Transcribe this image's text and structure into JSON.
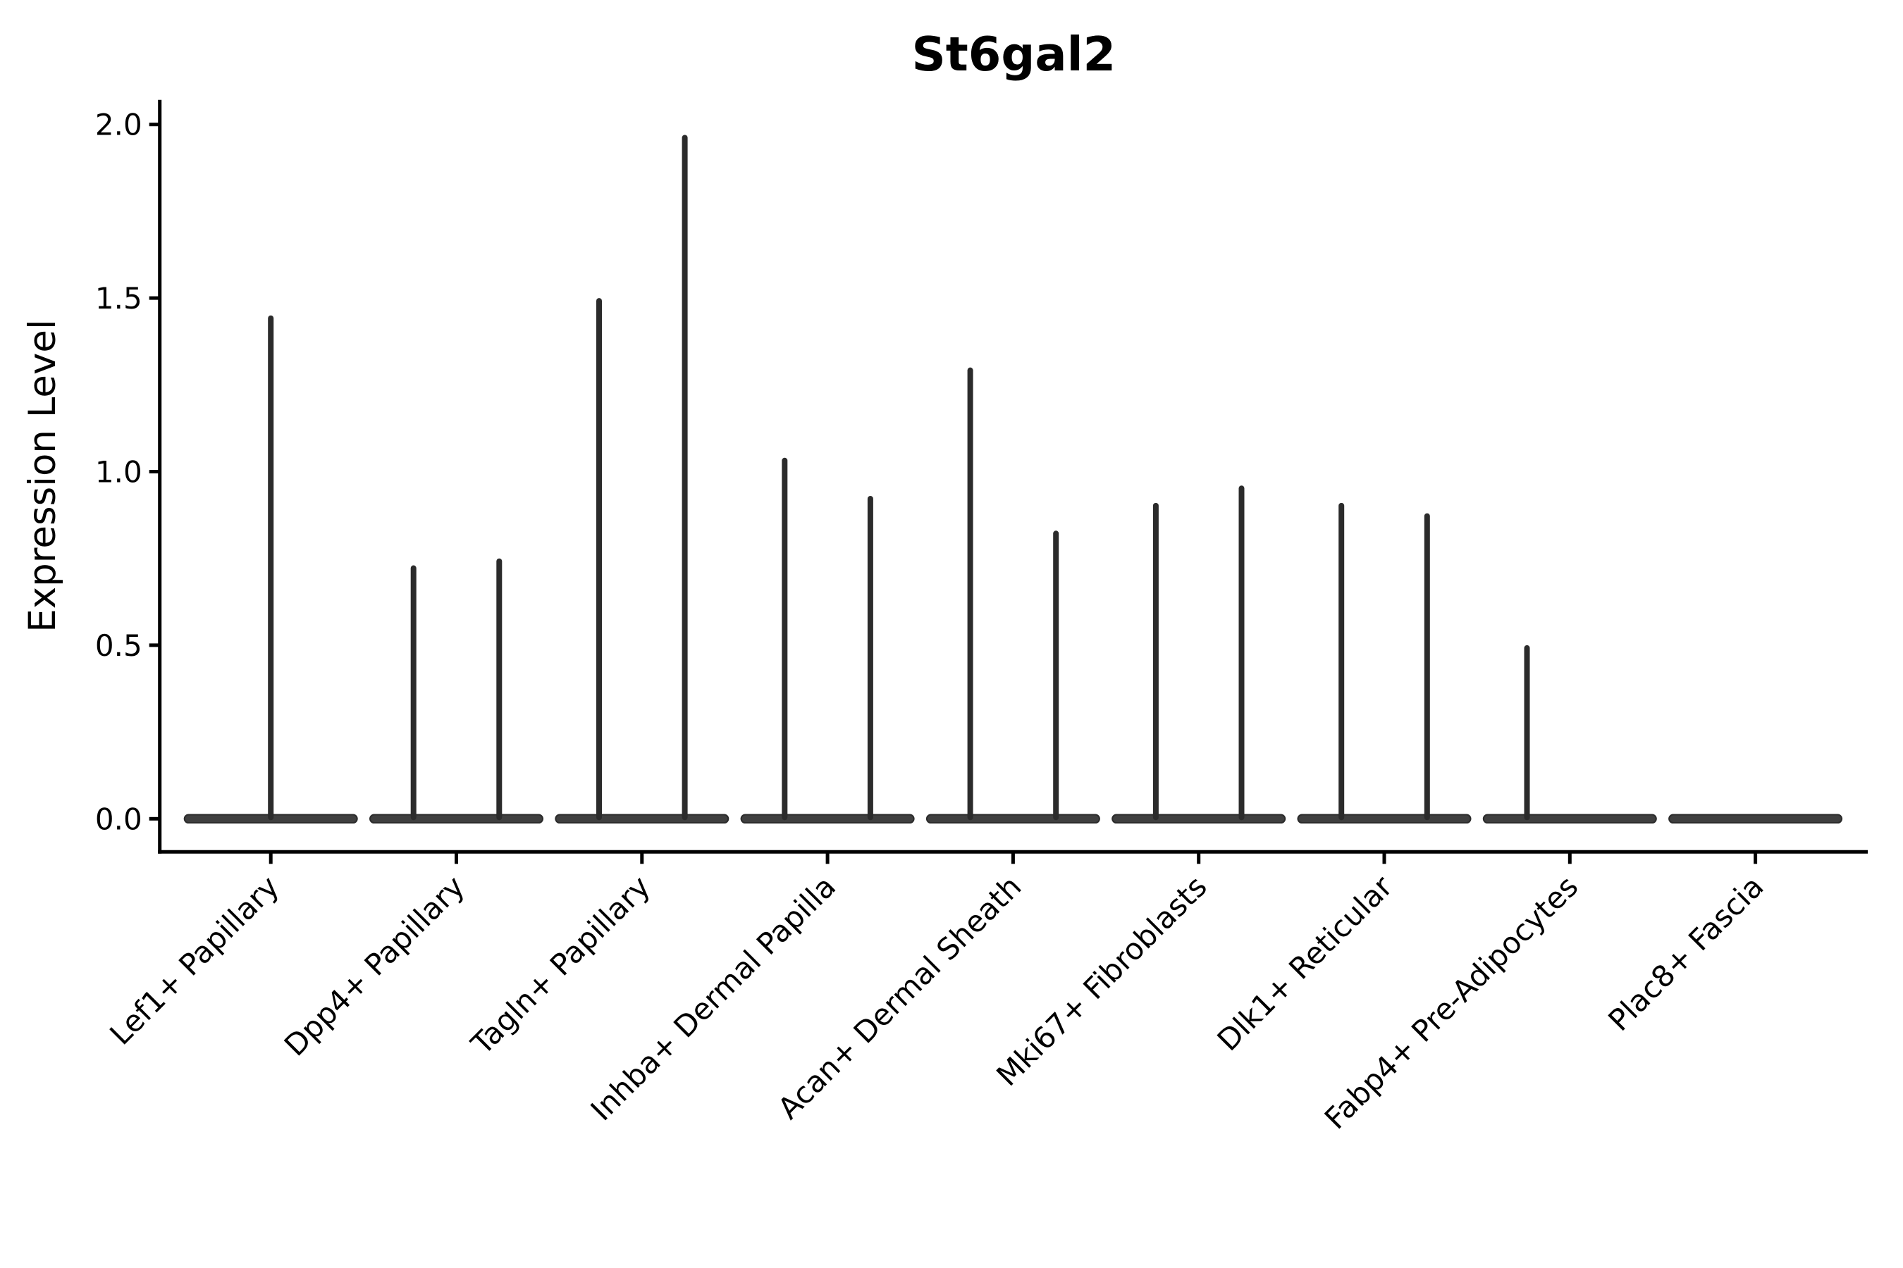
{
  "chart_data": {
    "type": "violin",
    "title": "St6gal2",
    "xlabel": "",
    "ylabel": "Expression Level",
    "yticks": [
      "0.0",
      "0.5",
      "1.0",
      "1.5",
      "2.0"
    ],
    "ytick_values": [
      0.0,
      0.5,
      1.0,
      1.5,
      2.0
    ],
    "ylim": [
      -0.095,
      2.071
    ],
    "grid": false,
    "legend": "none",
    "violin_color": "#3f3f3f",
    "violin_edge_color": "#2b2b2b",
    "axis_color": "#000000",
    "categories": [
      "Lef1+ Papillary",
      "Dpp4+ Papillary",
      "Tagln+ Papillary",
      "Inhba+ Dermal Papilla",
      "Acan+ Dermal Sheath",
      "Mki67+ Fibroblasts",
      "Dlk1+ Reticular",
      "Fabp4+ Pre-Adipocytes",
      "Plac8+ Fascia"
    ],
    "series": [
      {
        "name": "Lef1+ Papillary",
        "base_value": 0,
        "spikes": [
          {
            "position": "center",
            "value": 1.45
          }
        ]
      },
      {
        "name": "Dpp4+ Papillary",
        "base_value": 0,
        "spikes": [
          {
            "position": "left",
            "value": 0.73
          },
          {
            "position": "right",
            "value": 0.75
          }
        ]
      },
      {
        "name": "Tagln+ Papillary",
        "base_value": 0,
        "spikes": [
          {
            "position": "left",
            "value": 1.5
          },
          {
            "position": "right",
            "value": 1.97
          }
        ]
      },
      {
        "name": "Inhba+ Dermal Papilla",
        "base_value": 0,
        "spikes": [
          {
            "position": "left",
            "value": 1.04
          },
          {
            "position": "right",
            "value": 0.93
          }
        ]
      },
      {
        "name": "Acan+ Dermal Sheath",
        "base_value": 0,
        "spikes": [
          {
            "position": "left",
            "value": 1.3
          },
          {
            "position": "right",
            "value": 0.83
          }
        ]
      },
      {
        "name": "Mki67+ Fibroblasts",
        "base_value": 0,
        "spikes": [
          {
            "position": "left",
            "value": 0.91
          },
          {
            "position": "right",
            "value": 0.96
          }
        ]
      },
      {
        "name": "Dlk1+ Reticular",
        "base_value": 0,
        "spikes": [
          {
            "position": "left",
            "value": 0.91
          },
          {
            "position": "right",
            "value": 0.88
          }
        ]
      },
      {
        "name": "Fabp4+ Pre-Adipocytes",
        "base_value": 0,
        "spikes": [
          {
            "position": "left",
            "value": 0.5
          }
        ]
      },
      {
        "name": "Plac8+ Fascia",
        "base_value": 0,
        "spikes": []
      }
    ]
  }
}
